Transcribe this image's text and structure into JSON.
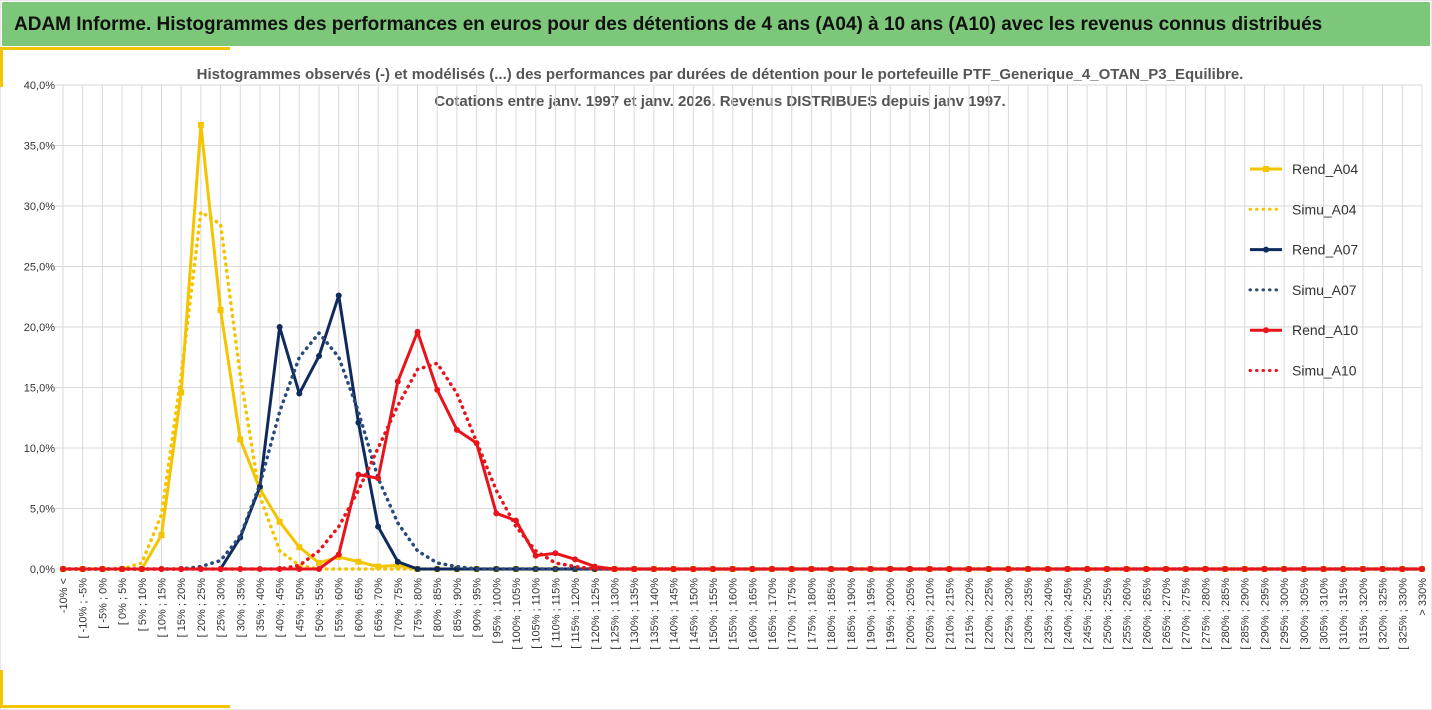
{
  "header": {
    "title": "ADAM Informe. Histogrammes des performances en euros pour des détentions de 4 ans (A04) à 10 ans (A10) avec les revenus connus distribués"
  },
  "chart_data": {
    "type": "line",
    "title": "Histogrammes observés (-) et modélisés (...) des performances par durées de détention pour le portefeuille PTF_Generique_4_OTAN_P3_Equilibre.",
    "subtitle": "Cotations entre janv. 1997 et janv. 2026. Revenus DISTRIBUES depuis janv 1997.",
    "categories": [
      "-10% <",
      "[ -10% ; -5%",
      "[ -5% ; 0%",
      "[ 0% ; 5%",
      "[ 5% ; 10%",
      "[ 10% ; 15%",
      "[ 15% ; 20%",
      "[ 20% ; 25%",
      "[ 25% ; 30%",
      "[ 30% ; 35%",
      "[ 35% ; 40%",
      "[ 40% ; 45%",
      "[ 45% ; 50%",
      "[ 50% ; 55%",
      "[ 55% ; 60%",
      "[ 60% ; 65%",
      "[ 65% ; 70%",
      "[ 70% ; 75%",
      "[ 75% ; 80%",
      "[ 80% ; 85%",
      "[ 85% ; 90%",
      "[ 90% ; 95%",
      "[ 95% ; 100%",
      "[ 100% ; 105%",
      "[ 105% ; 110%",
      "[ 110% ; 115%",
      "[ 115% ; 120%",
      "[ 120% ; 125%",
      "[ 125% ; 130%",
      "[ 130% ; 135%",
      "[ 135% ; 140%",
      "[ 140% ; 145%",
      "[ 145% ; 150%",
      "[ 150% ; 155%",
      "[ 155% ; 160%",
      "[ 160% ; 165%",
      "[ 165% ; 170%",
      "[ 170% ; 175%",
      "[ 175% ; 180%",
      "[ 180% ; 185%",
      "[ 185% ; 190%",
      "[ 190% ; 195%",
      "[ 195% ; 200%",
      "[ 200% ; 205%",
      "[ 205% ; 210%",
      "[ 210% ; 215%",
      "[ 215% ; 220%",
      "[ 220% ; 225%",
      "[ 225% ; 230%",
      "[ 230% ; 235%",
      "[ 235% ; 240%",
      "[ 240% ; 245%",
      "[ 245% ; 250%",
      "[ 250% ; 255%",
      "[ 255% ; 260%",
      "[ 260% ; 265%",
      "[ 265% ; 270%",
      "[ 270% ; 275%",
      "[ 275% ; 280%",
      "[ 280% ; 285%",
      "[ 285% ; 290%",
      "[ 290% ; 295%",
      "[ 295% ; 300%",
      "[ 300% ; 305%",
      "[ 305% ; 310%",
      "[ 310% ; 315%",
      "[ 315% ; 320%",
      "[ 320% ; 325%",
      "[ 325% ; 330%",
      "> 330%"
    ],
    "series": [
      {
        "name": "Rend_A04",
        "color": "#f5c400",
        "style": "solid",
        "marker": "square",
        "values": [
          0,
          0,
          0,
          0,
          0,
          2.8,
          14.6,
          36.7,
          21.4,
          10.7,
          6.6,
          3.9,
          1.8,
          0.5,
          1.0,
          0.6,
          0.2,
          0.3,
          0,
          0,
          0,
          0,
          0,
          0,
          0,
          0,
          0,
          0,
          0,
          0,
          0,
          0,
          0,
          0,
          0,
          0,
          0,
          0,
          0,
          0,
          0,
          0,
          0,
          0,
          0,
          0,
          0,
          0,
          0,
          0,
          0,
          0,
          0,
          0,
          0,
          0,
          0,
          0,
          0,
          0,
          0,
          0,
          0,
          0,
          0,
          0,
          0,
          0,
          0,
          0
        ]
      },
      {
        "name": "Simu_A04",
        "color": "#f5c400",
        "style": "dotted",
        "marker": "none",
        "values": [
          0,
          0,
          0,
          0,
          0.5,
          4.5,
          16,
          29.5,
          28.5,
          16,
          6,
          1.5,
          0.3,
          0,
          0,
          0,
          0,
          0,
          0,
          0,
          0,
          0,
          0,
          0,
          0,
          0,
          0,
          0,
          0,
          0,
          0,
          0,
          0,
          0,
          0,
          0,
          0,
          0,
          0,
          0,
          0,
          0,
          0,
          0,
          0,
          0,
          0,
          0,
          0,
          0,
          0,
          0,
          0,
          0,
          0,
          0,
          0,
          0,
          0,
          0,
          0,
          0,
          0,
          0,
          0,
          0,
          0,
          0,
          0,
          0
        ]
      },
      {
        "name": "Rend_A07",
        "color": "#0f2a5c",
        "style": "solid",
        "marker": "circle",
        "values": [
          0,
          0,
          0,
          0,
          0,
          0,
          0,
          0,
          0,
          2.6,
          6.8,
          20.0,
          14.5,
          17.6,
          22.6,
          12.1,
          3.5,
          0.6,
          0,
          0,
          0,
          0,
          0,
          0,
          0,
          0,
          0,
          0,
          0,
          0,
          0,
          0,
          0,
          0,
          0,
          0,
          0,
          0,
          0,
          0,
          0,
          0,
          0,
          0,
          0,
          0,
          0,
          0,
          0,
          0,
          0,
          0,
          0,
          0,
          0,
          0,
          0,
          0,
          0,
          0,
          0,
          0,
          0,
          0,
          0,
          0,
          0,
          0,
          0,
          0
        ]
      },
      {
        "name": "Simu_A07",
        "color": "#2a4a7a",
        "style": "dotted",
        "marker": "none",
        "values": [
          0,
          0,
          0,
          0,
          0,
          0,
          0,
          0.2,
          0.7,
          2.7,
          7,
          13,
          17.5,
          19.5,
          17.5,
          13,
          7.5,
          3.8,
          1.5,
          0.5,
          0.2,
          0,
          0,
          0,
          0,
          0,
          0,
          0,
          0,
          0,
          0,
          0,
          0,
          0,
          0,
          0,
          0,
          0,
          0,
          0,
          0,
          0,
          0,
          0,
          0,
          0,
          0,
          0,
          0,
          0,
          0,
          0,
          0,
          0,
          0,
          0,
          0,
          0,
          0,
          0,
          0,
          0,
          0,
          0,
          0,
          0,
          0,
          0,
          0,
          0
        ]
      },
      {
        "name": "Rend_A10",
        "color": "#e8141c",
        "style": "solid",
        "marker": "circle",
        "values": [
          0,
          0,
          0,
          0,
          0,
          0,
          0,
          0,
          0,
          0,
          0,
          0,
          0,
          0,
          1.2,
          7.8,
          7.5,
          15.5,
          19.6,
          14.8,
          11.5,
          10.4,
          4.6,
          4.0,
          1.1,
          1.3,
          0.8,
          0.2,
          0,
          0,
          0,
          0,
          0,
          0,
          0,
          0,
          0,
          0,
          0,
          0,
          0,
          0,
          0,
          0,
          0,
          0,
          0,
          0,
          0,
          0,
          0,
          0,
          0,
          0,
          0,
          0,
          0,
          0,
          0,
          0,
          0,
          0,
          0,
          0,
          0,
          0,
          0,
          0,
          0,
          0
        ]
      },
      {
        "name": "Simu_A10",
        "color": "#e8141c",
        "style": "dotted",
        "marker": "none",
        "values": [
          0,
          0,
          0,
          0,
          0,
          0,
          0,
          0,
          0,
          0,
          0,
          0,
          0.3,
          1.5,
          3.5,
          6.5,
          10,
          13.5,
          16.5,
          17,
          14.5,
          10.5,
          6.5,
          3.5,
          1.5,
          0.5,
          0.2,
          0,
          0,
          0,
          0,
          0,
          0,
          0,
          0,
          0,
          0,
          0,
          0,
          0,
          0,
          0,
          0,
          0,
          0,
          0,
          0,
          0,
          0,
          0,
          0,
          0,
          0,
          0,
          0,
          0,
          0,
          0,
          0,
          0,
          0,
          0,
          0,
          0,
          0,
          0,
          0,
          0,
          0,
          0
        ]
      }
    ],
    "ylim": [
      0,
      40
    ],
    "yticks": [
      {
        "value": 0,
        "label": "0,0%"
      },
      {
        "value": 5,
        "label": "5,0%"
      },
      {
        "value": 10,
        "label": "10,0%"
      },
      {
        "value": 15,
        "label": "15,0%"
      },
      {
        "value": 20,
        "label": "20,0%"
      },
      {
        "value": 25,
        "label": "25,0%"
      },
      {
        "value": 30,
        "label": "30,0%"
      },
      {
        "value": 35,
        "label": "35,0%"
      },
      {
        "value": 40,
        "label": "40,0%"
      }
    ],
    "grid": true,
    "legend": "right"
  }
}
